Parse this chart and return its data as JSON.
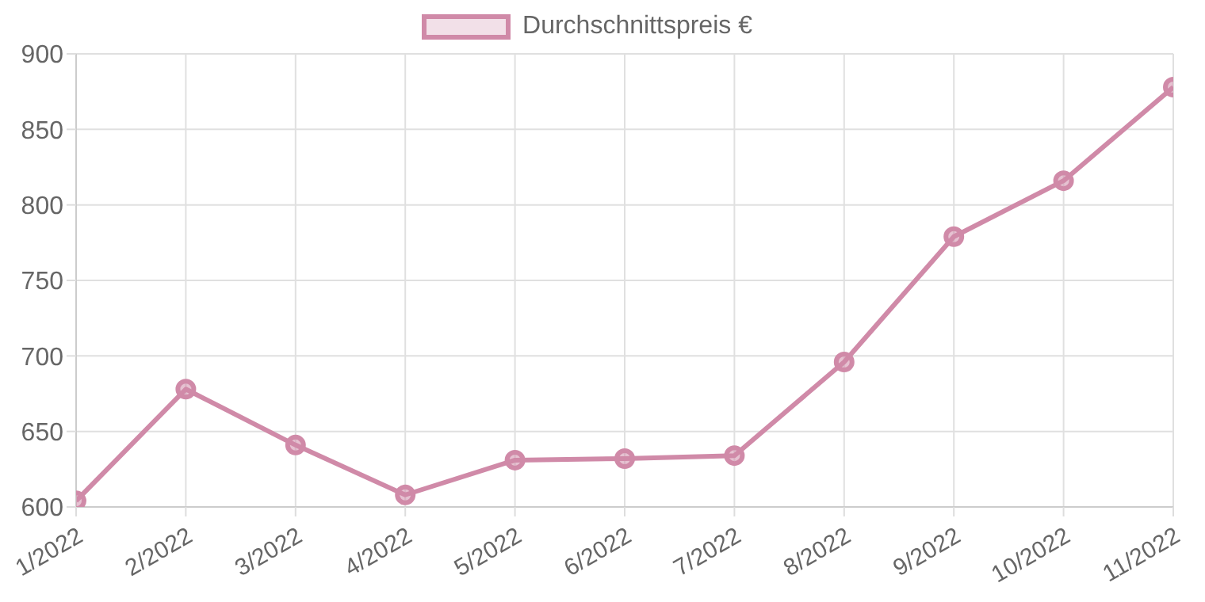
{
  "chart_data": {
    "type": "line",
    "categories": [
      "1/2022",
      "2/2022",
      "3/2022",
      "4/2022",
      "5/2022",
      "6/2022",
      "7/2022",
      "8/2022",
      "9/2022",
      "10/2022",
      "11/2022"
    ],
    "series": [
      {
        "name": "Durchschnittspreis €",
        "color": "#d08aa8",
        "values": [
          604,
          678,
          641,
          608,
          631,
          632,
          634,
          696,
          779,
          816,
          878
        ]
      }
    ],
    "ylim": [
      600,
      900
    ],
    "yticks": [
      600,
      650,
      700,
      750,
      800,
      850,
      900
    ],
    "grid": true,
    "legend": "top",
    "marker": "circle",
    "line_style": "solid"
  }
}
